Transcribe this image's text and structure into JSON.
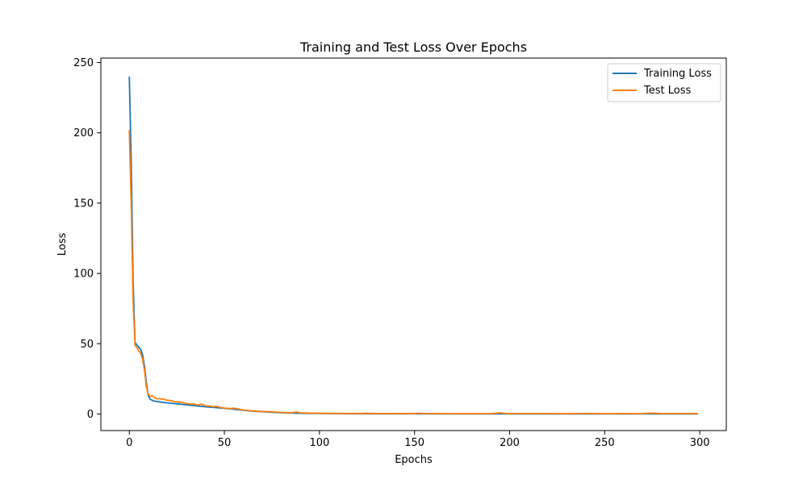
{
  "chart_data": {
    "type": "line",
    "title": "Training and Test Loss Over Epochs",
    "xlabel": "Epochs",
    "ylabel": "Loss",
    "xlim": [
      -14.95,
      313.95
    ],
    "ylim": [
      -11.8,
      253.2
    ],
    "xticks": [
      0,
      50,
      100,
      150,
      200,
      250,
      300
    ],
    "yticks": [
      0,
      50,
      100,
      150,
      200,
      250
    ],
    "grid": false,
    "legend": "top-right",
    "series": [
      {
        "name": "Training Loss",
        "color": "#1f77b4",
        "points": [
          [
            0,
            240
          ],
          [
            1,
            180
          ],
          [
            2,
            95
          ],
          [
            3,
            51
          ],
          [
            4,
            49
          ],
          [
            5,
            47.5
          ],
          [
            6,
            46
          ],
          [
            7,
            42
          ],
          [
            8,
            34
          ],
          [
            9,
            22
          ],
          [
            10,
            13
          ],
          [
            11,
            10.5
          ],
          [
            12,
            9.7
          ],
          [
            13,
            9.2
          ],
          [
            14,
            9.0
          ],
          [
            16,
            8.6
          ],
          [
            18,
            8.2
          ],
          [
            20,
            7.9
          ],
          [
            23,
            7.5
          ],
          [
            26,
            7.1
          ],
          [
            30,
            6.5
          ],
          [
            35,
            5.8
          ],
          [
            40,
            5.1
          ],
          [
            45,
            4.6
          ],
          [
            50,
            4.0
          ],
          [
            55,
            3.4
          ],
          [
            60,
            2.6
          ],
          [
            65,
            2.0
          ],
          [
            70,
            1.6
          ],
          [
            75,
            1.2
          ],
          [
            80,
            0.9
          ],
          [
            85,
            0.7
          ],
          [
            90,
            0.5
          ],
          [
            95,
            0.4
          ],
          [
            100,
            0.3
          ],
          [
            110,
            0.2
          ],
          [
            120,
            0.15
          ],
          [
            130,
            0.12
          ],
          [
            140,
            0.1
          ],
          [
            150,
            0.1
          ],
          [
            175,
            0.08
          ],
          [
            200,
            0.07
          ],
          [
            225,
            0.06
          ],
          [
            250,
            0.05
          ],
          [
            275,
            0.05
          ],
          [
            299,
            0.05
          ]
        ]
      },
      {
        "name": "Test Loss",
        "color": "#ff7f0e",
        "points": [
          [
            0,
            202
          ],
          [
            1,
            150
          ],
          [
            2,
            80
          ],
          [
            3,
            49
          ],
          [
            4,
            47
          ],
          [
            5,
            45
          ],
          [
            6,
            43
          ],
          [
            7,
            39
          ],
          [
            8,
            31
          ],
          [
            9,
            19
          ],
          [
            10,
            14
          ],
          [
            11,
            12.5
          ],
          [
            12,
            13
          ],
          [
            13,
            12
          ],
          [
            14,
            11
          ],
          [
            15,
            10.8
          ],
          [
            16,
            11
          ],
          [
            17,
            10.4
          ],
          [
            18,
            10.7
          ],
          [
            19,
            10.1
          ],
          [
            20,
            9.8
          ],
          [
            22,
            9.5
          ],
          [
            24,
            8.7
          ],
          [
            26,
            8.5
          ],
          [
            28,
            8.2
          ],
          [
            30,
            7.5
          ],
          [
            32,
            7.2
          ],
          [
            34,
            7.0
          ],
          [
            36,
            6.4
          ],
          [
            38,
            7.0
          ],
          [
            40,
            5.8
          ],
          [
            42,
            5.6
          ],
          [
            44,
            5.2
          ],
          [
            46,
            5.4
          ],
          [
            48,
            4.6
          ],
          [
            50,
            4.2
          ],
          [
            53,
            3.8
          ],
          [
            55,
            4.1
          ],
          [
            57,
            3.6
          ],
          [
            60,
            2.8
          ],
          [
            65,
            2.2
          ],
          [
            70,
            1.8
          ],
          [
            75,
            1.5
          ],
          [
            80,
            1.1
          ],
          [
            85,
            0.9
          ],
          [
            88,
            1.4
          ],
          [
            90,
            0.8
          ],
          [
            95,
            0.6
          ],
          [
            100,
            0.5
          ],
          [
            110,
            0.4
          ],
          [
            120,
            0.35
          ],
          [
            125,
            0.5
          ],
          [
            130,
            0.3
          ],
          [
            140,
            0.3
          ],
          [
            150,
            0.28
          ],
          [
            152,
            0.6
          ],
          [
            155,
            0.3
          ],
          [
            160,
            0.3
          ],
          [
            170,
            0.25
          ],
          [
            180,
            0.25
          ],
          [
            190,
            0.25
          ],
          [
            195,
            0.8
          ],
          [
            198,
            0.3
          ],
          [
            210,
            0.3
          ],
          [
            220,
            0.3
          ],
          [
            230,
            0.25
          ],
          [
            240,
            0.4
          ],
          [
            250,
            0.25
          ],
          [
            260,
            0.3
          ],
          [
            270,
            0.25
          ],
          [
            275,
            0.6
          ],
          [
            280,
            0.3
          ],
          [
            290,
            0.3
          ],
          [
            299,
            0.3
          ]
        ]
      }
    ]
  }
}
